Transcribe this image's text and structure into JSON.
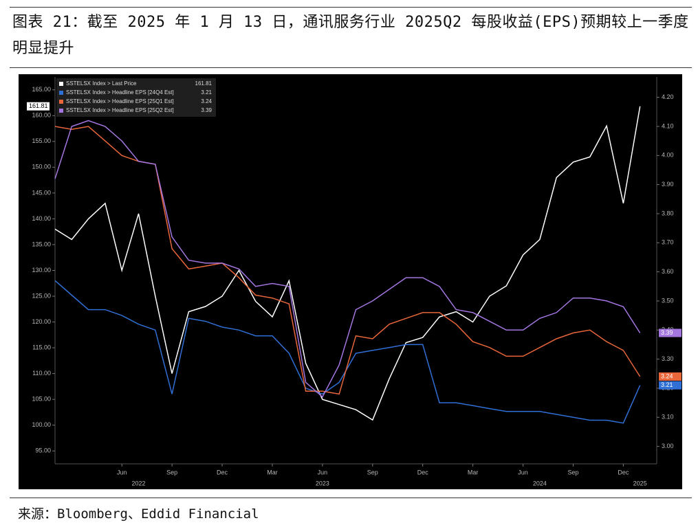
{
  "title": "图表 21：截至 2025 年 1 月 13 日，通讯服务行业 2025Q2 每股收益(EPS)预期较上一季度明显提升",
  "source": "来源：Bloomberg、Eddid Financial",
  "chart_data": {
    "type": "line",
    "x": [
      "2022-02",
      "2022-03",
      "2022-04",
      "2022-05",
      "2022-06",
      "2022-07",
      "2022-08",
      "2022-09",
      "2022-10",
      "2022-11",
      "2022-12",
      "2023-01",
      "2023-02",
      "2023-03",
      "2023-04",
      "2023-05",
      "2023-06",
      "2023-07",
      "2023-08",
      "2023-09",
      "2023-10",
      "2023-11",
      "2023-12",
      "2024-01",
      "2024-02",
      "2024-03",
      "2024-04",
      "2024-05",
      "2024-06",
      "2024-07",
      "2024-08",
      "2024-09",
      "2024-10",
      "2024-11",
      "2024-12",
      "2025-01"
    ],
    "series": [
      {
        "name": "SSTELSX Index > Last Price",
        "color": "#ffffff",
        "axis": "y",
        "values": [
          138,
          136,
          140,
          143,
          130,
          141,
          125,
          110,
          122,
          123,
          125,
          130,
          124,
          121,
          128,
          112,
          105,
          104,
          103,
          101,
          109,
          116,
          117,
          121,
          122,
          120,
          125,
          127,
          133,
          136,
          148,
          151,
          152,
          158,
          143,
          161.81
        ]
      },
      {
        "name": "SSTELSX Index > Headline EPS [24Q4 Est]",
        "color": "#2f6fd6",
        "axis": "y2",
        "values": [
          3.57,
          3.52,
          3.47,
          3.47,
          3.45,
          3.42,
          3.4,
          3.18,
          3.44,
          3.43,
          3.41,
          3.4,
          3.38,
          3.38,
          3.32,
          3.2,
          3.18,
          3.22,
          3.32,
          3.33,
          3.34,
          3.35,
          3.35,
          3.15,
          3.15,
          3.14,
          3.13,
          3.12,
          3.12,
          3.12,
          3.11,
          3.1,
          3.09,
          3.09,
          3.08,
          3.21
        ]
      },
      {
        "name": "SSTELSX Index > Headline EPS [25Q1 Est]",
        "color": "#e8663a",
        "axis": "y2",
        "values": [
          4.1,
          4.09,
          4.1,
          4.05,
          4.0,
          3.98,
          3.97,
          3.68,
          3.61,
          3.62,
          3.63,
          3.58,
          3.52,
          3.51,
          3.49,
          3.19,
          3.19,
          3.18,
          3.38,
          3.37,
          3.42,
          3.44,
          3.46,
          3.46,
          3.42,
          3.36,
          3.34,
          3.31,
          3.31,
          3.34,
          3.37,
          3.39,
          3.4,
          3.36,
          3.33,
          3.24
        ]
      },
      {
        "name": "SSTELSX Index > Headline EPS [25Q2 Est]",
        "color": "#a476e0",
        "axis": "y2",
        "values": [
          3.92,
          4.1,
          4.12,
          4.1,
          4.05,
          3.98,
          3.97,
          3.72,
          3.64,
          3.63,
          3.63,
          3.61,
          3.55,
          3.56,
          3.55,
          3.22,
          3.17,
          3.28,
          3.47,
          3.5,
          3.54,
          3.58,
          3.58,
          3.55,
          3.47,
          3.46,
          3.43,
          3.4,
          3.4,
          3.44,
          3.46,
          3.51,
          3.51,
          3.5,
          3.48,
          3.39
        ]
      }
    ],
    "xlim": [
      "2022-02",
      "2025-02"
    ],
    "xticks": [
      {
        "value": "2022-06",
        "label": "Jun"
      },
      {
        "value": "2022-09",
        "label": "Sep"
      },
      {
        "value": "2022-12",
        "label": "Dec"
      },
      {
        "value": "2023-03",
        "label": "Mar"
      },
      {
        "value": "2023-06",
        "label": "Jun"
      },
      {
        "value": "2023-09",
        "label": "Sep"
      },
      {
        "value": "2023-12",
        "label": "Dec"
      },
      {
        "value": "2024-03",
        "label": "Mar"
      },
      {
        "value": "2024-06",
        "label": "Jun"
      },
      {
        "value": "2024-09",
        "label": "Sep"
      },
      {
        "value": "2024-12",
        "label": "Dec"
      }
    ],
    "year_labels": [
      {
        "value": "2022-07",
        "label": "2022"
      },
      {
        "value": "2023-06",
        "label": "2023"
      },
      {
        "value": "2024-07",
        "label": "2024"
      },
      {
        "value": "2025-01",
        "label": "2025"
      }
    ],
    "ylim": [
      92.5,
      167.5
    ],
    "yticks": [
      {
        "value": 95,
        "label": "95.00"
      },
      {
        "value": 100,
        "label": "100.00"
      },
      {
        "value": 105,
        "label": "105.00"
      },
      {
        "value": 110,
        "label": "110.00"
      },
      {
        "value": 115,
        "label": "115.00"
      },
      {
        "value": 120,
        "label": "120.00"
      },
      {
        "value": 125,
        "label": "125.00"
      },
      {
        "value": 130,
        "label": "130.00"
      },
      {
        "value": 135,
        "label": "135.00"
      },
      {
        "value": 140,
        "label": "140.00"
      },
      {
        "value": 145,
        "label": "145.00"
      },
      {
        "value": 150,
        "label": "150.00"
      },
      {
        "value": 155,
        "label": "155.00"
      },
      {
        "value": 160,
        "label": "160.00"
      },
      {
        "value": 165,
        "label": "165.00"
      }
    ],
    "y2lim": [
      2.94,
      4.27
    ],
    "y2ticks": [
      {
        "value": 3.0,
        "label": "3.00"
      },
      {
        "value": 3.1,
        "label": "3.10"
      },
      {
        "value": 3.2,
        "label": "3.20"
      },
      {
        "value": 3.3,
        "label": "3.30"
      },
      {
        "value": 3.4,
        "label": "3.40"
      },
      {
        "value": 3.5,
        "label": "3.50"
      },
      {
        "value": 3.6,
        "label": "3.60"
      },
      {
        "value": 3.7,
        "label": "3.70"
      },
      {
        "value": 3.8,
        "label": "3.80"
      },
      {
        "value": 3.9,
        "label": "3.90"
      },
      {
        "value": 4.0,
        "label": "4.00"
      },
      {
        "value": 4.1,
        "label": "4.10"
      },
      {
        "value": 4.2,
        "label": "4.20"
      }
    ],
    "legend": "upper left"
  }
}
